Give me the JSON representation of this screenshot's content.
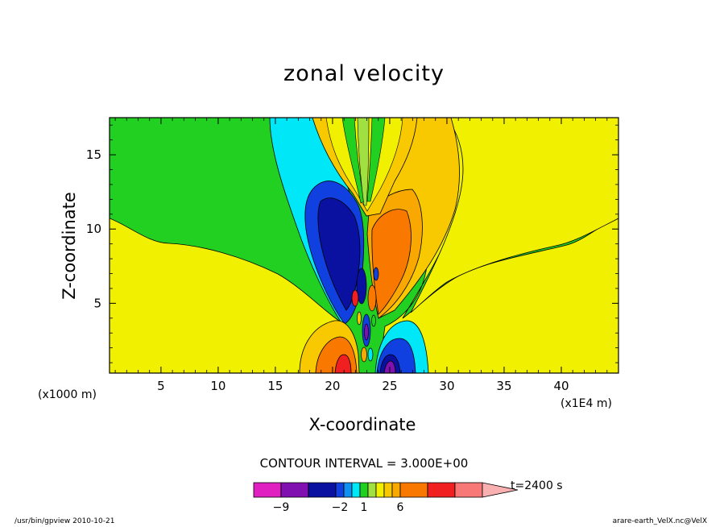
{
  "chart_data": {
    "type": "heatmap",
    "title": "zonal velocity",
    "xlabel": "X-coordinate",
    "ylabel": "Z-coordinate",
    "x_unit": "(x1000 m)",
    "x_unit2": "(x1E4 m)",
    "x_ticks": [
      5,
      10,
      15,
      20,
      25,
      30,
      35,
      40
    ],
    "y_ticks": [
      5,
      10,
      15
    ],
    "xlim": [
      0.5,
      45
    ],
    "ylim": [
      0.3,
      17.5
    ],
    "contour_interval": "CONTOUR INTERVAL = 3.000E+00",
    "time_label": "t=2400 s",
    "colorbar": {
      "labels": [
        {
          "text": "−9",
          "value": -9
        },
        {
          "text": "−2",
          "value": -2
        },
        {
          "text": "1",
          "value": 1
        },
        {
          "text": "6",
          "value": 6
        }
      ],
      "colors": [
        "#e020c0",
        "#8010b0",
        "#0a10a0",
        "#1040e0",
        "#1090f0",
        "#00e8f8",
        "#20d020",
        "#a0e040",
        "#f0f000",
        "#f8c800",
        "#f8a800",
        "#f87800",
        "#f02020",
        "#f87878",
        "#f8b0b0"
      ]
    },
    "regions": {
      "background_upper": "#22d022",
      "background_lower": "#f0f000",
      "negative_colors": [
        "#00e8f8",
        "#1040e0",
        "#0a10a0",
        "#8010b0"
      ],
      "positive_colors": [
        "#f8c800",
        "#f8a800",
        "#f87800",
        "#f02020"
      ]
    }
  },
  "footer": {
    "left": "/usr/bin/gpview  2010-10-21",
    "right": "arare-earth_VelX.nc@VelX"
  }
}
